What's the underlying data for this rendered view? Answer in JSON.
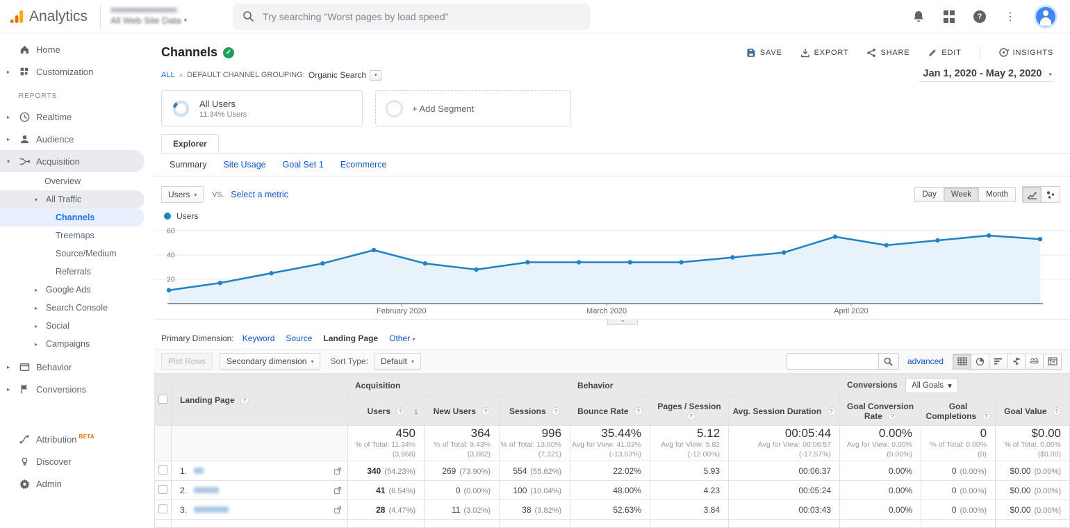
{
  "topbar": {
    "product": "Analytics",
    "property": "All Web Site Data",
    "search_placeholder": "Try searching \"Worst pages by load speed\"",
    "icons": [
      "notifications-bell",
      "google-apps-grid",
      "help",
      "more-vertical",
      "account-avatar"
    ]
  },
  "sidebar": {
    "reports_label": "REPORTS",
    "attribution_badge": "BETA",
    "items": [
      {
        "label": "Home"
      },
      {
        "label": "Customization"
      },
      {
        "label": "Realtime"
      },
      {
        "label": "Audience"
      },
      {
        "label": "Acquisition"
      },
      {
        "label": "Overview"
      },
      {
        "label": "All Traffic"
      },
      {
        "label": "Channels"
      },
      {
        "label": "Treemaps"
      },
      {
        "label": "Source/Medium"
      },
      {
        "label": "Referrals"
      },
      {
        "label": "Google Ads"
      },
      {
        "label": "Search Console"
      },
      {
        "label": "Social"
      },
      {
        "label": "Campaigns"
      },
      {
        "label": "Behavior"
      },
      {
        "label": "Conversions"
      },
      {
        "label": "Attribution"
      },
      {
        "label": "Discover"
      },
      {
        "label": "Admin"
      }
    ]
  },
  "report": {
    "title": "Channels",
    "actions": {
      "save": "SAVE",
      "export": "EXPORT",
      "share": "SHARE",
      "edit": "EDIT",
      "insights": "INSIGHTS"
    },
    "breadcrumb": {
      "all": "ALL",
      "grouping": "DEFAULT CHANNEL GROUPING:",
      "value": "Organic Search"
    },
    "date_range": "Jan 1, 2020 - May 2, 2020"
  },
  "segments": {
    "all_users": {
      "name": "All Users",
      "detail": "11.34% Users"
    },
    "add_label": "+ Add Segment"
  },
  "explorer": {
    "tab": "Explorer",
    "subtabs": [
      "Summary",
      "Site Usage",
      "Goal Set 1",
      "Ecommerce"
    ]
  },
  "controls": {
    "metric": "Users",
    "vs": "VS.",
    "select_metric": "Select a metric",
    "granularity": [
      "Day",
      "Week",
      "Month"
    ],
    "active_granularity": "Week",
    "legend": "Users"
  },
  "chart_data": {
    "type": "line",
    "series": [
      {
        "name": "Users",
        "values": [
          11,
          17,
          25,
          33,
          44,
          33,
          28,
          34,
          34,
          34,
          34,
          38,
          42,
          55,
          48,
          52,
          56,
          53
        ]
      }
    ],
    "x_unit": "week",
    "x_range": [
      "Jan 1, 2020",
      "May 2, 2020"
    ],
    "month_labels": [
      {
        "label": "February 2020",
        "pos": 0.27
      },
      {
        "label": "March 2020",
        "pos": 0.494
      },
      {
        "label": "April 2020",
        "pos": 0.761
      }
    ],
    "y_ticks": [
      20,
      40,
      60
    ],
    "ylim": [
      0,
      65
    ],
    "grid": true,
    "legend_position": "top-left",
    "line_color": "#2083c5",
    "fill_color": "#e8f2fa"
  },
  "dimension_bar": {
    "label": "Primary Dimension:",
    "options": [
      "Keyword",
      "Source",
      "Landing Page",
      "Other"
    ],
    "active": "Landing Page"
  },
  "toolbar": {
    "plot_rows": "Plot Rows",
    "secondary_dimension": "Secondary dimension",
    "sort_type_label": "Sort Type:",
    "sort_type_value": "Default",
    "search_value": "",
    "advanced": "advanced",
    "view_icons": [
      "data-table",
      "percentage-pie",
      "performance-bars",
      "comparison",
      "term-cloud",
      "pivot"
    ]
  },
  "table": {
    "groups": {
      "acquisition": "Acquisition",
      "behavior": "Behavior",
      "conversions": "Conversions",
      "goal_selector": "All Goals"
    },
    "columns": {
      "landing_page": "Landing Page",
      "users": "Users",
      "new_users": "New Users",
      "sessions": "Sessions",
      "bounce_rate": "Bounce Rate",
      "pages_session": "Pages / Session",
      "avg_duration": "Avg. Session Duration",
      "goal_conv_rate": "Goal Conversion Rate",
      "goal_completions": "Goal Completions",
      "goal_value": "Goal Value"
    },
    "sorted_column": "users",
    "totals": {
      "users": {
        "value": "450",
        "sub1": "% of Total: 11.34%",
        "sub2": "(3,968)"
      },
      "new_users": {
        "value": "364",
        "sub1": "% of Total: 9.43%",
        "sub2": "(3,862)"
      },
      "sessions": {
        "value": "996",
        "sub1": "% of Total: 13.60%",
        "sub2": "(7,321)"
      },
      "bounce_rate": {
        "value": "35.44%",
        "sub1": "Avg for View: 41.03%",
        "sub2": "(-13.63%)"
      },
      "pages_session": {
        "value": "5.12",
        "sub1": "Avg for View: 5.82",
        "sub2": "(-12.00%)"
      },
      "avg_duration": {
        "value": "00:05:44",
        "sub1": "Avg for View: 00:06:57",
        "sub2": "(-17.57%)"
      },
      "goal_conv_rate": {
        "value": "0.00%",
        "sub1": "Avg for View: 0.00%",
        "sub2": "(0.00%)"
      },
      "goal_completions": {
        "value": "0",
        "sub1": "% of Total: 0.00% (0)",
        "sub2": ""
      },
      "goal_value": {
        "value": "$0.00",
        "sub1": "% of Total: 0.00%",
        "sub2": "($0.00)"
      }
    },
    "rows": [
      {
        "index": "1.",
        "users": "340",
        "users_pct": "(54.23%)",
        "new_users": "269",
        "new_users_pct": "(73.90%)",
        "sessions": "554",
        "sessions_pct": "(55.62%)",
        "bounce_rate": "22.02%",
        "pages_session": "5.93",
        "avg_duration": "00:06:37",
        "goal_conv_rate": "0.00%",
        "goal_completions": "0",
        "goal_completions_pct": "(0.00%)",
        "goal_value": "$0.00",
        "goal_value_pct": "(0.00%)"
      },
      {
        "index": "2.",
        "users": "41",
        "users_pct": "(6.54%)",
        "new_users": "0",
        "new_users_pct": "(0.00%)",
        "sessions": "100",
        "sessions_pct": "(10.04%)",
        "bounce_rate": "48.00%",
        "pages_session": "4.23",
        "avg_duration": "00:05:24",
        "goal_conv_rate": "0.00%",
        "goal_completions": "0",
        "goal_completions_pct": "(0.00%)",
        "goal_value": "$0.00",
        "goal_value_pct": "(0.00%)"
      },
      {
        "index": "3.",
        "users": "28",
        "users_pct": "(4.47%)",
        "new_users": "11",
        "new_users_pct": "(3.02%)",
        "sessions": "38",
        "sessions_pct": "(3.82%)",
        "bounce_rate": "52.63%",
        "pages_session": "3.84",
        "avg_duration": "00:03:43",
        "goal_conv_rate": "0.00%",
        "goal_completions": "0",
        "goal_completions_pct": "(0.00%)",
        "goal_value": "$0.00",
        "goal_value_pct": "(0.00%)"
      }
    ]
  },
  "colors": {
    "accent_blue": "#1a73e8",
    "link_blue": "#1155cc",
    "line_blue": "#2083c5",
    "logo_orange": "#f9ab00",
    "logo_dark_orange": "#e37400",
    "badge_green": "#1e9e5a",
    "selected_nav_bg": "#e8f0fe"
  }
}
